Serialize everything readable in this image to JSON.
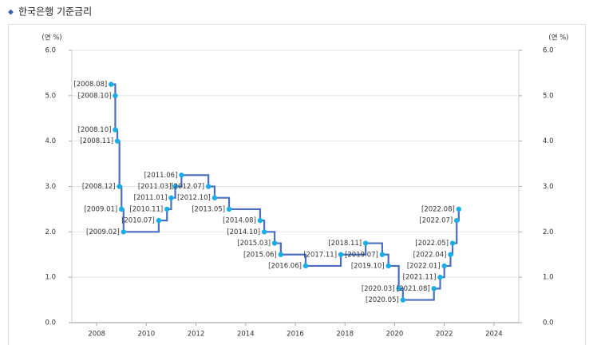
{
  "chart_data": {
    "type": "step",
    "title": "한국은행 기준금리",
    "y_label": "(연 %)",
    "y2_label": "(연 %)",
    "x": [
      "2008.08",
      "2008.10",
      "2008.10",
      "2008.11",
      "2008.12",
      "2009.01",
      "2009.02",
      "2010.07",
      "2010.11",
      "2011.01",
      "2011.03",
      "2011.06",
      "2012.07",
      "2012.10",
      "2013.05",
      "2014.08",
      "2014.10",
      "2015.03",
      "2015.06",
      "2016.06",
      "2017.11",
      "2018.11",
      "2019.07",
      "2019.10",
      "2020.03",
      "2020.05",
      "2021.08",
      "2021.11",
      "2022.01",
      "2022.04",
      "2022.05",
      "2022.07",
      "2022.08"
    ],
    "series": [
      {
        "color": "#4a6fc0",
        "marker_color": "#19aee6",
        "values": [
          5.25,
          5.0,
          4.25,
          4.0,
          3.0,
          2.5,
          2.0,
          2.25,
          2.5,
          2.75,
          3.0,
          3.25,
          3.0,
          2.75,
          2.5,
          2.25,
          2.0,
          1.75,
          1.5,
          1.25,
          1.5,
          1.75,
          1.5,
          1.25,
          0.75,
          0.5,
          0.75,
          1.0,
          1.25,
          1.5,
          1.75,
          2.25,
          2.5
        ]
      }
    ],
    "xlim": [
      2007,
      2025
    ],
    "xticks": [
      2008,
      2010,
      2012,
      2014,
      2016,
      2018,
      2020,
      2022,
      2024
    ],
    "ylim": [
      0,
      6
    ],
    "yticks": [
      {
        "value": 0,
        "label": "0.0"
      },
      {
        "value": 1,
        "label": "1.0"
      },
      {
        "value": 2,
        "label": "2.0"
      },
      {
        "value": 3,
        "label": "3.0"
      },
      {
        "value": 4,
        "label": "4.0"
      },
      {
        "value": 5,
        "label": "5.0"
      },
      {
        "value": 6,
        "label": "6.0"
      }
    ],
    "y2lim": [
      0,
      6
    ],
    "y2ticks": [
      {
        "value": 0,
        "label": "0.0"
      },
      {
        "value": 1,
        "label": "1.0"
      },
      {
        "value": 2,
        "label": "2.0"
      },
      {
        "value": 3,
        "label": "3.0"
      },
      {
        "value": 4,
        "label": "4.0"
      },
      {
        "value": 5,
        "label": "5.0"
      },
      {
        "value": 6,
        "label": "6.0"
      }
    ],
    "grid": true
  }
}
